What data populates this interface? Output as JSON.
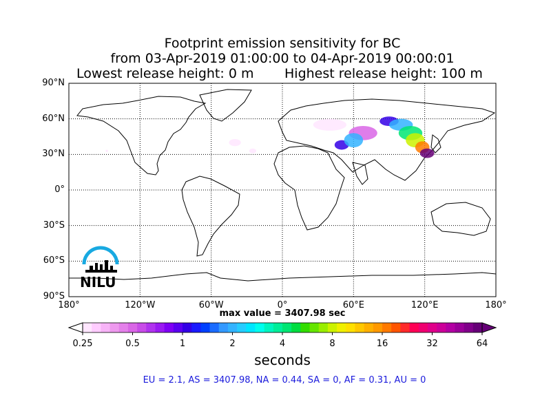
{
  "title": {
    "line1": "Footprint emission sensitivity for BC",
    "line2": "from 03-Apr-2019 01:00:00 to 04-Apr-2019 00:00:01",
    "lowest": "Lowest release height: 0 m",
    "highest": "Highest release height: 100 m"
  },
  "max_value_text": "max value = 3407.98 sec",
  "unit_label": "seconds",
  "stats_text": "EU = 2.1,  AS = 3407.98,  NA = 0.44,  SA = 0,  AF = 0.31,  AU = 0",
  "logo_text": "NILU",
  "colors": {
    "stats": "#1a1adc",
    "logo": "#18a9e1"
  },
  "chart_data": {
    "type": "heatmap",
    "projection": "equirectangular",
    "xlim": [
      -180,
      180
    ],
    "ylim": [
      -90,
      90
    ],
    "grid": true,
    "grid_style": "dotted",
    "lat_ticks": [
      {
        "value": 90,
        "label": "90°N"
      },
      {
        "value": 60,
        "label": "60°N"
      },
      {
        "value": 30,
        "label": "30°N"
      },
      {
        "value": 0,
        "label": "0°"
      },
      {
        "value": -30,
        "label": "30°S"
      },
      {
        "value": -60,
        "label": "60°S"
      },
      {
        "value": -90,
        "label": "90°S"
      }
    ],
    "lon_ticks": [
      {
        "value": -180,
        "label": "180°"
      },
      {
        "value": -120,
        "label": "120°W"
      },
      {
        "value": -60,
        "label": "60°W"
      },
      {
        "value": 0,
        "label": "0°"
      },
      {
        "value": 60,
        "label": "60°E"
      },
      {
        "value": 120,
        "label": "120°E"
      },
      {
        "value": 180,
        "label": "180°"
      }
    ],
    "colorbar": {
      "scale": "log",
      "min": 0.25,
      "max": 64,
      "extend": "both",
      "ticks": [
        {
          "value": 0.25,
          "label": "0.25"
        },
        {
          "value": 0.5,
          "label": "0.5"
        },
        {
          "value": 1,
          "label": "1"
        },
        {
          "value": 2,
          "label": "2"
        },
        {
          "value": 4,
          "label": "4"
        },
        {
          "value": 8,
          "label": "8"
        },
        {
          "value": 16,
          "label": "16"
        },
        {
          "value": 32,
          "label": "32"
        },
        {
          "value": 64,
          "label": "64"
        }
      ],
      "colors": [
        "#ffe6ff",
        "#ffccff",
        "#f7b3f7",
        "#ee99ee",
        "#e480ea",
        "#d966e6",
        "#c84ce8",
        "#b033ee",
        "#9a1af2",
        "#7f00f5",
        "#5a00f0",
        "#3300e6",
        "#1a1aff",
        "#0040ff",
        "#1a6cff",
        "#3399ff",
        "#33b3ff",
        "#26ccff",
        "#00e6ff",
        "#00ffee",
        "#00f5c0",
        "#00ee99",
        "#00e673",
        "#00dd40",
        "#33dd00",
        "#66e600",
        "#99ee00",
        "#ccf200",
        "#f0f000",
        "#ffe000",
        "#ffc800",
        "#ffb000",
        "#ff9900",
        "#ff7a00",
        "#ff5500",
        "#ff2a2a",
        "#ff0055",
        "#f00070",
        "#e0008a",
        "#cc0099",
        "#b300a3",
        "#9a0099",
        "#80008a",
        "#660077"
      ]
    },
    "plumes": [
      {
        "lon": 122,
        "lat": 31,
        "rx": 6,
        "ry": 4,
        "value": 64
      },
      {
        "lon": 118,
        "lat": 36,
        "rx": 6,
        "ry": 5,
        "value": 16
      },
      {
        "lon": 112,
        "lat": 42,
        "rx": 8,
        "ry": 6,
        "value": 8
      },
      {
        "lon": 108,
        "lat": 48,
        "rx": 10,
        "ry": 6,
        "value": 4
      },
      {
        "lon": 100,
        "lat": 55,
        "rx": 10,
        "ry": 5,
        "value": 2
      },
      {
        "lon": 90,
        "lat": 58,
        "rx": 8,
        "ry": 4,
        "value": 1
      },
      {
        "lon": 68,
        "lat": 48,
        "rx": 12,
        "ry": 6,
        "value": 0.5
      },
      {
        "lon": 60,
        "lat": 42,
        "rx": 8,
        "ry": 6,
        "value": 2
      },
      {
        "lon": 50,
        "lat": 38,
        "rx": 6,
        "ry": 4,
        "value": 1
      },
      {
        "lon": 40,
        "lat": 55,
        "rx": 14,
        "ry": 5,
        "value": 0.25
      },
      {
        "lon": -40,
        "lat": 40,
        "rx": 5,
        "ry": 3,
        "value": 0.25
      },
      {
        "lon": -25,
        "lat": 33,
        "rx": 3,
        "ry": 2,
        "value": 0.25
      },
      {
        "lon": -148,
        "lat": 33,
        "rx": 1,
        "ry": 1,
        "value": 0.25
      }
    ],
    "max_value_seconds": 3407.98
  }
}
